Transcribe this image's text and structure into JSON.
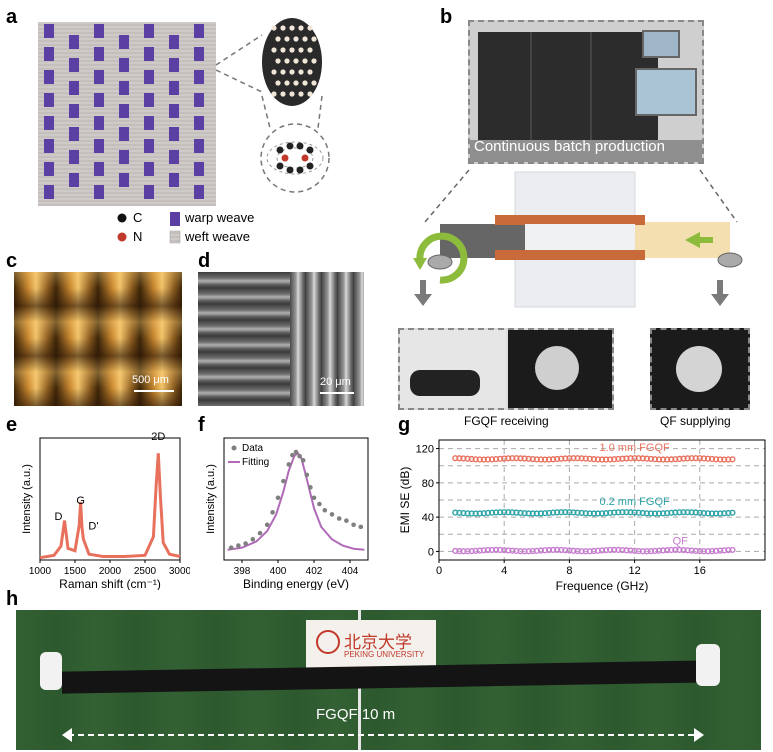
{
  "panels": {
    "a": {
      "label": "a",
      "legend": {
        "c": "C",
        "n": "N",
        "warp": "warp weave",
        "weft": "weft weave"
      }
    },
    "b": {
      "label": "b",
      "banner": "Continuous batch production",
      "receiving": "FGQF receiving",
      "supplying": "QF supplying"
    },
    "c": {
      "label": "c",
      "scalebar": "500 μm"
    },
    "d": {
      "label": "d",
      "scalebar": "20 μm"
    },
    "e": {
      "label": "e"
    },
    "f": {
      "label": "f"
    },
    "g": {
      "label": "g"
    },
    "h": {
      "label": "h",
      "sign": "北京大学",
      "sign_sub": "PEKING UNIVERSITY",
      "length": "FGQF 10 m"
    }
  },
  "colors": {
    "warp": "#5b3fa3",
    "weft": "#c8c4c2",
    "raman": "#e8715e",
    "xps_fit": "#b06ab8",
    "xps_data": "#7f7f7f",
    "emi_1mm": "#e8715e",
    "emi_02mm": "#2ba3a6",
    "emi_qf": "#c77ad0",
    "grass": "#2d5a2d",
    "copper": "#c86a3a"
  },
  "chart_data": [
    {
      "panel": "e",
      "type": "line",
      "xlabel": "Raman shift (cm⁻¹)",
      "ylabel": "Intensity (a.u.)",
      "xlim": [
        1000,
        3000
      ],
      "xticks": [
        "1000",
        "1500",
        "2000",
        "2500",
        "3000"
      ],
      "peak_labels": [
        {
          "text": "D",
          "x": 1350,
          "y": 0.31
        },
        {
          "text": "G",
          "x": 1580,
          "y": 0.45
        },
        {
          "text": "D'",
          "x": 1620,
          "y": 0.23
        },
        {
          "text": "2D",
          "x": 2690,
          "y": 1.0
        }
      ],
      "series": [
        {
          "x": [
            1000,
            1200,
            1300,
            1350,
            1400,
            1500,
            1560,
            1580,
            1600,
            1620,
            1700,
            1900,
            2200,
            2500,
            2620,
            2660,
            2690,
            2720,
            2760,
            2850,
            3000
          ],
          "y": [
            0.02,
            0.04,
            0.12,
            0.34,
            0.1,
            0.08,
            0.3,
            0.5,
            0.28,
            0.18,
            0.05,
            0.03,
            0.03,
            0.04,
            0.2,
            0.65,
            0.92,
            0.55,
            0.15,
            0.05,
            0.03
          ]
        }
      ]
    },
    {
      "panel": "f",
      "type": "scatter",
      "xlabel": "Binding energy (eV)",
      "ylabel": "Intensity (a.u.)",
      "xlim": [
        397,
        405
      ],
      "xticks": [
        "398",
        "400",
        "402",
        "404"
      ],
      "series": [
        {
          "name": "Data",
          "x": [
            397.4,
            397.8,
            398.2,
            398.6,
            399.0,
            399.4,
            399.7,
            400.0,
            400.3,
            400.6,
            400.8,
            401.0,
            401.2,
            401.4,
            401.6,
            401.8,
            402.0,
            402.3,
            402.6,
            403.0,
            403.4,
            403.8,
            404.2,
            404.6
          ],
          "y": [
            0.08,
            0.1,
            0.12,
            0.16,
            0.22,
            0.3,
            0.42,
            0.56,
            0.72,
            0.88,
            0.97,
            1.0,
            0.96,
            0.92,
            0.78,
            0.66,
            0.56,
            0.5,
            0.44,
            0.4,
            0.36,
            0.34,
            0.3,
            0.28
          ]
        },
        {
          "name": "Fitting",
          "x": [
            397.2,
            398.0,
            398.8,
            399.4,
            399.9,
            400.3,
            400.6,
            400.9,
            401.1,
            401.3,
            401.6,
            402.0,
            402.4,
            403.0,
            403.6,
            404.2,
            404.8
          ],
          "y": [
            0.06,
            0.08,
            0.14,
            0.24,
            0.4,
            0.62,
            0.82,
            0.96,
            0.99,
            0.94,
            0.74,
            0.46,
            0.28,
            0.16,
            0.1,
            0.07,
            0.06
          ]
        }
      ]
    },
    {
      "panel": "g",
      "type": "scatter",
      "xlabel": "Frequence (GHz)",
      "ylabel": "EMI SE (dB)",
      "xlim": [
        0,
        20
      ],
      "ylim": [
        -10,
        130
      ],
      "xticks": [
        0,
        4,
        8,
        12,
        16
      ],
      "yticks": [
        0,
        20,
        40,
        60,
        80,
        100,
        120
      ],
      "grid": true,
      "series": [
        {
          "name": "1.0 mm FGQF",
          "x_range": [
            1,
            18
          ],
          "value": 108
        },
        {
          "name": "0.2 mm FGQF",
          "x_range": [
            1,
            18
          ],
          "value": 45
        },
        {
          "name": "QF",
          "x_range": [
            1,
            18
          ],
          "value": 1
        }
      ]
    }
  ]
}
